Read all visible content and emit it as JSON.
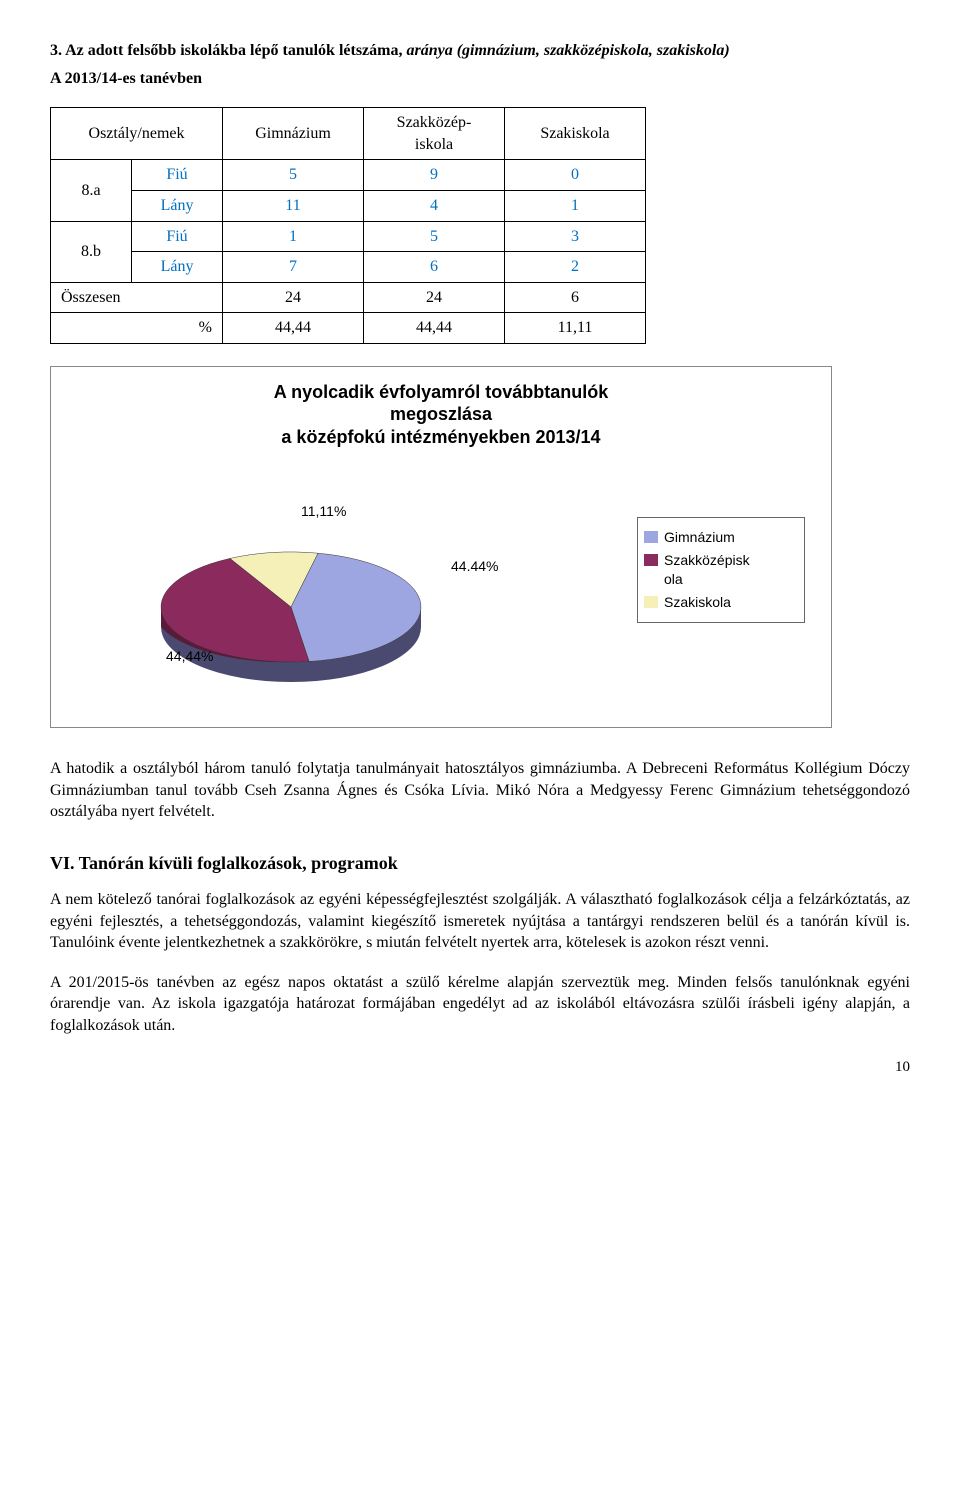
{
  "header": {
    "title_prefix": "3. Az adott felsőbb iskolákba lépő tanulók létszáma, ",
    "title_italic": "aránya (gimnázium, szakközépiskola, szakiskola)",
    "subtitle": "A 2013/14-es tanévben"
  },
  "table": {
    "columns": [
      "Osztály/nemek",
      "Gimnázium",
      "Szakközép-\niskola",
      "Szakiskola"
    ],
    "rows": [
      {
        "class": "8.a",
        "sub": "Fiú",
        "g": "5",
        "szk": "9",
        "sz": "0",
        "blue": true
      },
      {
        "class": "",
        "sub": "Lány",
        "g": "11",
        "szk": "4",
        "sz": "1",
        "blue": true
      },
      {
        "class": "8.b",
        "sub": "Fiú",
        "g": "1",
        "szk": "5",
        "sz": "3",
        "blue": true
      },
      {
        "class": "",
        "sub": "Lány",
        "g": "7",
        "szk": "6",
        "sz": "2",
        "blue": true
      }
    ],
    "totals": {
      "label": "Összesen",
      "g": "24",
      "szk": "24",
      "sz": "6"
    },
    "pct": {
      "label": "%",
      "g": "44,44",
      "szk": "44,44",
      "sz": "11,11"
    },
    "blue_color": "#0070c0"
  },
  "chart": {
    "title_lines": [
      "A nyolcadik évfolyamról továbbtanulók",
      "megoszlása",
      "a középfokú intézményekben 2013/14"
    ],
    "slices": [
      {
        "label": "Gimnázium",
        "value": 44.44,
        "color": "#9da6e0",
        "pct_text": "44.44%"
      },
      {
        "label": "Szakközépisk\nola",
        "value": 44.44,
        "color": "#8b2a5c",
        "pct_text": "44,44%"
      },
      {
        "label": "Szakiskola",
        "value": 11.11,
        "color": "#f5f0b8",
        "pct_text": "11,11%"
      }
    ],
    "side_color": "#5a5a88",
    "side_color2": "#5a1a3a",
    "border_color": "#888888"
  },
  "body": {
    "para1": "A hatodik a osztályból három tanuló folytatja tanulmányait hatosztályos gimnáziumba. A Debreceni Református Kollégium Dóczy Gimnáziumban tanul tovább Cseh Zsanna Ágnes és Csóka Lívia. Mikó Nóra a Medgyessy Ferenc Gimnázium tehetséggondozó osztályába nyert felvételt.",
    "h2": "VI. Tanórán kívüli foglalkozások, programok",
    "para2": "A nem kötelező tanórai foglalkozások az egyéni képességfejlesztést szolgálják. A választható foglalkozások célja a felzárkóztatás, az egyéni fejlesztés, a tehetséggondozás, valamint kiegészítő ismeretek nyújtása a tantárgyi rendszeren belül és a tanórán kívül is. Tanulóink évente jelentkezhetnek a szakkörökre, s miután felvételt nyertek arra, kötelesek is azokon részt venni.",
    "para3": "A 201/2015-ös tanévben az egész napos oktatást a szülő kérelme alapján szerveztük meg. Minden felsős tanulónknak egyéni órarendje van. Az iskola igazgatója határozat formájában engedélyt ad az iskolából eltávozásra szülői írásbeli igény alapján, a foglalkozások után."
  },
  "page_number": "10"
}
